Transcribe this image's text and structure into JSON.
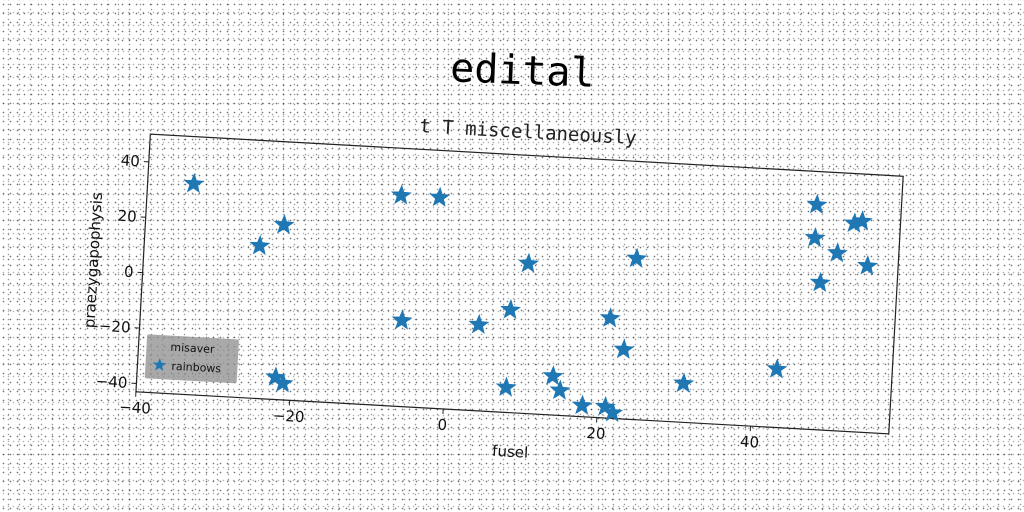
{
  "chart_data": {
    "type": "scatter",
    "title": "edital",
    "subtitle": "t T miscellaneously",
    "xlabel": "fusel",
    "ylabel": "praezygapophysis",
    "xlim": [
      -40,
      58
    ],
    "ylim": [
      -43,
      50
    ],
    "xticks": [
      -40,
      -20,
      0,
      20,
      40
    ],
    "yticks": [
      -40,
      -20,
      0,
      20,
      40
    ],
    "grid": false,
    "legend": {
      "title": "misaver",
      "placement": "lower-left"
    },
    "series": [
      {
        "name": "rainbows",
        "marker": "star",
        "color": "#1f77b4",
        "points": [
          [
            -34,
            33
          ],
          [
            -25,
            12
          ],
          [
            -22,
            20
          ],
          [
            -22,
            -35
          ],
          [
            -21,
            -37
          ],
          [
            -7,
            33
          ],
          [
            -2,
            33
          ],
          [
            -6,
            -12
          ],
          [
            4,
            -12
          ],
          [
            8,
            -6
          ],
          [
            10,
            11
          ],
          [
            8,
            -34
          ],
          [
            14,
            -29
          ],
          [
            15,
            -34
          ],
          [
            18,
            -39
          ],
          [
            21,
            -7
          ],
          [
            21,
            -39
          ],
          [
            22,
            -41
          ],
          [
            24,
            15
          ],
          [
            23,
            -18
          ],
          [
            31,
            -29
          ],
          [
            43,
            -22
          ],
          [
            47,
            38
          ],
          [
            47,
            26
          ],
          [
            48,
            10
          ],
          [
            50,
            21
          ],
          [
            52,
            32
          ],
          [
            53,
            33
          ],
          [
            54,
            17
          ]
        ]
      }
    ]
  }
}
